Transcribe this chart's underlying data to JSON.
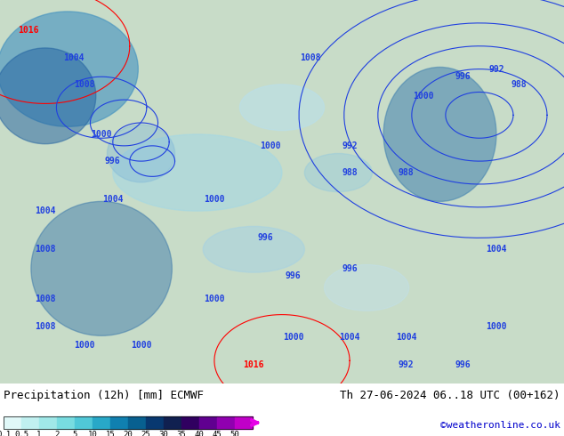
{
  "title_left": "Precipitation (12h) [mm] ECMWF",
  "title_right": "Th 27-06-2024 06..18 UTC (00+162)",
  "credit": "©weatheronline.co.uk",
  "colorbar_labels": [
    "0.1",
    "0.5",
    "1",
    "2",
    "5",
    "10",
    "15",
    "20",
    "25",
    "30",
    "35",
    "40",
    "45",
    "50"
  ],
  "cmap_colors": [
    "#e0f8f8",
    "#c0f0f0",
    "#a0e8e8",
    "#78dce0",
    "#50c8d8",
    "#28a8c8",
    "#1080b0",
    "#086090",
    "#083870",
    "#102050",
    "#300060",
    "#600090",
    "#9000b0",
    "#c000c8",
    "#e800e8"
  ],
  "bottom_bg": "#ffffff",
  "map_bg": "#c8dcc8",
  "isobar_color": "#2040e0",
  "red_color": "red",
  "credit_color": "#0000cc"
}
